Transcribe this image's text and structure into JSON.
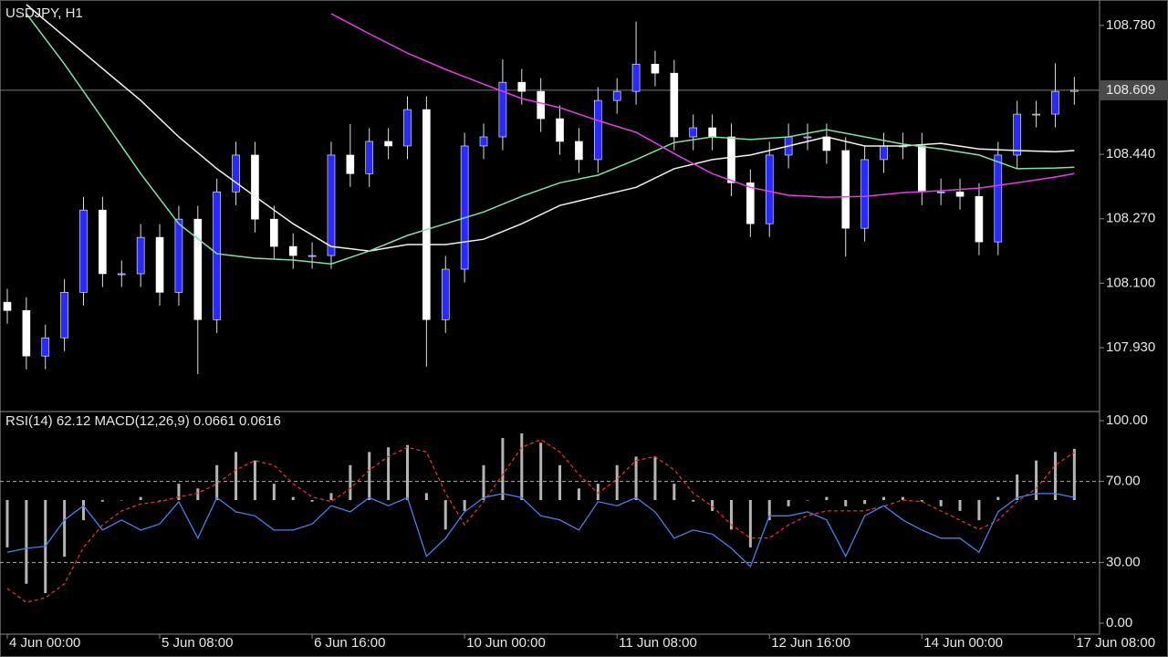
{
  "chart_data": [
    {
      "type": "candlestick",
      "title": "USDJPY, H1",
      "x": [
        0,
        4,
        8,
        12,
        16,
        20,
        24,
        28,
        32,
        36,
        40,
        44,
        48,
        52,
        56,
        60,
        64,
        68,
        72,
        76,
        80,
        84,
        88,
        92,
        96,
        100,
        104,
        108,
        112,
        116,
        120,
        124,
        128,
        132,
        136,
        140,
        144,
        148,
        152,
        156,
        160,
        164,
        168,
        172,
        176,
        180,
        184,
        188,
        192,
        196,
        200,
        204,
        208,
        212,
        216,
        220,
        224
      ],
      "open": [
        108.05,
        108.028,
        107.908,
        107.956,
        108.076,
        108.293,
        108.125,
        108.125,
        108.221,
        108.076,
        108.269,
        108.004,
        108.341,
        108.438,
        108.269,
        108.197,
        108.173,
        108.173,
        108.438,
        108.389,
        108.474,
        108.462,
        108.558,
        108.004,
        108.137,
        108.462,
        108.486,
        108.63,
        108.606,
        108.534,
        108.474,
        108.426,
        108.582,
        108.606,
        108.678,
        108.654,
        108.486,
        108.51,
        108.486,
        108.365,
        108.257,
        108.438,
        108.486,
        108.486,
        108.45,
        108.245,
        108.426,
        108.462,
        108.462,
        108.341,
        108.341,
        108.329,
        108.209,
        108.438,
        108.546,
        108.546,
        108.606
      ],
      "high": [
        108.085,
        108.063,
        107.991,
        108.111,
        108.328,
        108.328,
        108.16,
        108.256,
        108.256,
        108.304,
        108.304,
        108.376,
        108.473,
        108.473,
        108.304,
        108.232,
        108.208,
        108.473,
        108.52,
        108.509,
        108.509,
        108.593,
        108.593,
        108.172,
        108.497,
        108.521,
        108.69,
        108.665,
        108.641,
        108.569,
        108.509,
        108.617,
        108.641,
        108.79,
        108.713,
        108.689,
        108.545,
        108.545,
        108.521,
        108.4,
        108.473,
        108.521,
        108.521,
        108.521,
        108.485,
        108.461,
        108.497,
        108.497,
        108.497,
        108.376,
        108.376,
        108.364,
        108.473,
        108.581,
        108.581,
        108.68,
        108.644
      ],
      "low": [
        107.993,
        107.873,
        107.873,
        107.921,
        108.041,
        108.09,
        108.09,
        108.09,
        108.041,
        108.041,
        107.86,
        107.969,
        108.306,
        108.234,
        108.162,
        108.138,
        108.138,
        108.138,
        108.354,
        108.354,
        108.427,
        108.427,
        107.88,
        107.969,
        108.102,
        108.427,
        108.451,
        108.571,
        108.499,
        108.439,
        108.391,
        108.391,
        108.547,
        108.571,
        108.619,
        108.451,
        108.451,
        108.451,
        108.33,
        108.222,
        108.222,
        108.403,
        108.451,
        108.415,
        108.17,
        108.21,
        108.391,
        108.427,
        108.306,
        108.306,
        108.294,
        108.174,
        108.174,
        108.403,
        108.511,
        108.511,
        108.571
      ],
      "close": [
        108.028,
        107.908,
        107.956,
        108.076,
        108.293,
        108.125,
        108.125,
        108.221,
        108.076,
        108.269,
        108.004,
        108.341,
        108.438,
        108.269,
        108.197,
        108.173,
        108.173,
        108.438,
        108.389,
        108.474,
        108.462,
        108.558,
        108.004,
        108.137,
        108.462,
        108.486,
        108.63,
        108.606,
        108.534,
        108.474,
        108.426,
        108.582,
        108.606,
        108.678,
        108.654,
        108.486,
        108.51,
        108.486,
        108.365,
        108.257,
        108.438,
        108.486,
        108.486,
        108.45,
        108.245,
        108.426,
        108.462,
        108.462,
        108.341,
        108.341,
        108.329,
        108.209,
        108.438,
        108.546,
        108.546,
        108.606,
        108.609
      ],
      "up_color": "#2a2aff",
      "down_color": "#ffffff",
      "ma_x": [
        4,
        12,
        20,
        28,
        36,
        44,
        52,
        60,
        68,
        76,
        84,
        92,
        100,
        108,
        116,
        124,
        132,
        140,
        148,
        156,
        164,
        172,
        180,
        188,
        196,
        204,
        212,
        220,
        224
      ],
      "lines": [
        {
          "color": "#f2f2e6",
          "values": [
            108.835,
            108.751,
            108.666,
            108.582,
            108.486,
            108.402,
            108.329,
            108.257,
            108.197,
            108.185,
            108.202,
            108.202,
            108.216,
            108.257,
            108.305,
            108.329,
            108.353,
            108.402,
            108.426,
            108.438,
            108.462,
            108.486,
            108.462,
            108.462,
            108.469,
            108.454,
            108.45,
            108.447,
            108.45
          ]
        },
        {
          "color": "#7fe0a8",
          "values": [
            108.811,
            108.678,
            108.534,
            108.389,
            108.257,
            108.178,
            108.166,
            108.161,
            108.151,
            108.185,
            108.226,
            108.257,
            108.288,
            108.329,
            108.365,
            108.385,
            108.426,
            108.471,
            108.486,
            108.479,
            108.486,
            108.505,
            108.486,
            108.467,
            108.454,
            108.438,
            108.402,
            108.404,
            108.406
          ]
        },
        {
          "color": "#e040e0",
          "values": [
            null,
            null,
            null,
            null,
            null,
            null,
            null,
            null,
            108.811,
            108.758,
            108.707,
            108.664,
            108.625,
            108.587,
            108.563,
            108.529,
            108.498,
            108.442,
            108.389,
            108.353,
            108.332,
            108.327,
            108.329,
            108.339,
            108.344,
            108.351,
            108.365,
            108.38,
            108.389
          ]
        }
      ],
      "xlim": [
        -1.53,
        229.3
      ],
      "ylim": [
        107.764,
        108.847
      ],
      "yticks": [
        {
          "value": 108.78,
          "label": "108.780"
        },
        {
          "value": 108.44,
          "label": "108.440"
        },
        {
          "value": 108.27,
          "label": "108.270"
        },
        {
          "value": 108.1,
          "label": "108.100"
        },
        {
          "value": 107.93,
          "label": "107.930"
        }
      ],
      "current_price": {
        "value": 108.609,
        "label": "108.609"
      }
    },
    {
      "type": "indicator",
      "title": "RSI(14) 62.12 MACD(12,26,9) 0.0661 0.0616",
      "x": [
        0,
        4,
        8,
        12,
        16,
        20,
        24,
        28,
        32,
        36,
        40,
        44,
        48,
        52,
        56,
        60,
        64,
        68,
        72,
        76,
        80,
        84,
        88,
        92,
        96,
        100,
        104,
        108,
        112,
        116,
        120,
        124,
        128,
        132,
        136,
        140,
        144,
        148,
        152,
        156,
        160,
        164,
        168,
        172,
        176,
        180,
        184,
        188,
        192,
        196,
        200,
        204,
        208,
        212,
        216,
        220,
        224
      ],
      "series": [
        {
          "style": "bars",
          "axis": "y2",
          "color": "#b4b4b4",
          "values": [
            -0.061,
            -0.108,
            -0.12,
            -0.073,
            -0.026,
            -0.002,
            0,
            0.004,
            0,
            0.021,
            0.015,
            0.045,
            0.062,
            0.051,
            0.021,
            0.004,
            -0.002,
            0.009,
            0.045,
            0.062,
            0.068,
            0.071,
            0.009,
            -0.038,
            -0.014,
            0.045,
            0.08,
            0.086,
            0.074,
            0.045,
            0.015,
            0.021,
            0.045,
            0.056,
            0.056,
            0.021,
            -0.002,
            -0.014,
            -0.038,
            -0.061,
            -0.026,
            -0.008,
            0,
            0.004,
            -0.008,
            -0.005,
            0.004,
            0.004,
            -0.002,
            -0.008,
            -0.014,
            -0.026,
            0.004,
            0.033,
            0.051,
            0.062,
            0.0661
          ]
        },
        {
          "style": "dashed",
          "axis": "y2",
          "color": "#e03030",
          "values": [
            -0.114,
            -0.132,
            -0.126,
            -0.108,
            -0.061,
            -0.032,
            -0.014,
            -0.005,
            -0.002,
            0.004,
            0.009,
            0.021,
            0.039,
            0.051,
            0.045,
            0.021,
            0.004,
            -0.002,
            0.015,
            0.039,
            0.056,
            0.068,
            0.062,
            0.009,
            -0.032,
            -0.002,
            0.033,
            0.068,
            0.078,
            0.062,
            0.033,
            0.009,
            0.027,
            0.051,
            0.056,
            0.039,
            0.009,
            -0.008,
            -0.032,
            -0.049,
            -0.049,
            -0.032,
            -0.02,
            -0.014,
            -0.014,
            -0.014,
            -0.008,
            0,
            -0.002,
            -0.014,
            -0.026,
            -0.038,
            -0.026,
            -0.002,
            0.015,
            0.045,
            0.0616
          ]
        },
        {
          "style": "line",
          "color": "#4a7fe8",
          "values": [
            35,
            37,
            38,
            51,
            58,
            46,
            51,
            46,
            49,
            60,
            42,
            62,
            55,
            53,
            46,
            46,
            49,
            58,
            55,
            62,
            58,
            62,
            33,
            42,
            55,
            62,
            64,
            62,
            53,
            51,
            46,
            60,
            58,
            62,
            55,
            42,
            46,
            44,
            37,
            28,
            53,
            53,
            55,
            51,
            33,
            53,
            58,
            51,
            46,
            42,
            42,
            35,
            55,
            62,
            64,
            64,
            62.12
          ]
        }
      ],
      "xlim": [
        -1.53,
        229.3
      ],
      "ylim": [
        -5.4,
        104.05
      ],
      "y2lim": [
        -0.173,
        0.113
      ],
      "yticks": [
        {
          "value": 100,
          "label": "100.00"
        },
        {
          "value": 70,
          "label": "70.00"
        },
        {
          "value": 30,
          "label": "30.00"
        },
        {
          "value": 0,
          "label": "0.00"
        }
      ],
      "xticks": [
        {
          "value": 0,
          "label": "4 Jun 00:00"
        },
        {
          "value": 32,
          "label": "5 Jun 08:00"
        },
        {
          "value": 64,
          "label": "6 Jun 16:00"
        },
        {
          "value": 96,
          "label": "10 Jun 00:00"
        },
        {
          "value": 128,
          "label": "11 Jun 08:00"
        },
        {
          "value": 160,
          "label": "12 Jun 16:00"
        },
        {
          "value": 192,
          "label": "14 Jun 00:00"
        },
        {
          "value": 224,
          "label": "17 Jun 08:00"
        }
      ]
    }
  ]
}
